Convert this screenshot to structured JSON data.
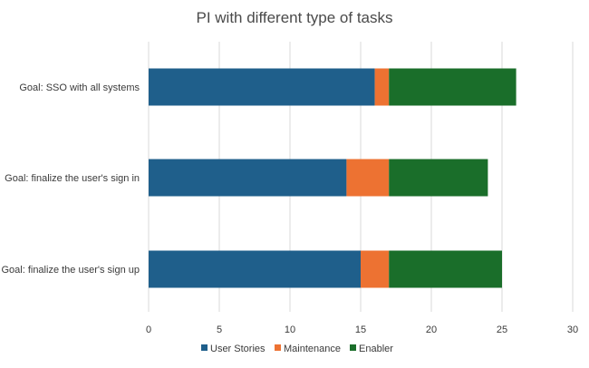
{
  "chart_data": {
    "type": "bar",
    "orientation": "horizontal",
    "stacked": true,
    "title": "PI with different type of tasks",
    "xlabel": "",
    "ylabel": "",
    "categories": [
      "Goal: SSO with all systems",
      "Goal: finalize the user's sign in",
      "Goal: finalize the user's sign up"
    ],
    "series": [
      {
        "name": "User Stories",
        "color": "#1f5f8b",
        "values": [
          16,
          14,
          15
        ]
      },
      {
        "name": "Maintenance",
        "color": "#ed7232",
        "values": [
          1,
          3,
          2
        ]
      },
      {
        "name": "Enabler",
        "color": "#1a6e2a",
        "values": [
          9,
          7,
          8
        ]
      }
    ],
    "xlim": [
      0,
      30
    ],
    "x_ticks": [
      "0",
      "5",
      "10",
      "15",
      "20",
      "25",
      "30"
    ],
    "grid": true,
    "legend_position": "bottom"
  }
}
